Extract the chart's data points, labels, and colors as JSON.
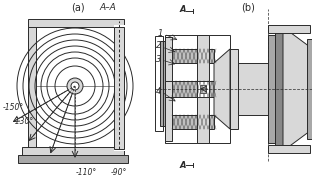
{
  "fig_width": 3.12,
  "fig_height": 1.81,
  "dpi": 100,
  "line_color": "#2a2a2a",
  "label_a": "(a)",
  "label_b": "(b)",
  "section_label": "A–A",
  "angles": [
    "-150°",
    "-130°",
    "-110°",
    "-90°"
  ],
  "part_labels": [
    "1",
    "2",
    "3",
    "4"
  ],
  "A_label": "A",
  "gray_fill": "#c0c0c0",
  "light_gray": "#d8d8d8",
  "mid_gray": "#a8a8a8",
  "dark_gray": "#888888",
  "white": "#ffffff",
  "hatch_gray": "#b0b0b0"
}
